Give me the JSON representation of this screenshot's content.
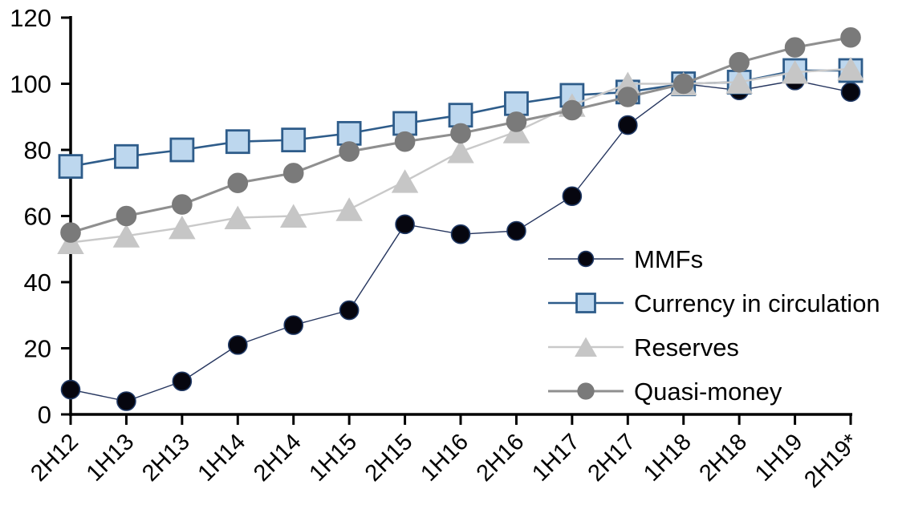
{
  "chart_data": {
    "type": "line",
    "title": "",
    "categories": [
      "2H12",
      "1H13",
      "2H13",
      "1H14",
      "2H14",
      "1H15",
      "2H15",
      "1H16",
      "2H16",
      "1H17",
      "2H17",
      "1H18",
      "2H18",
      "1H19",
      "2H19*"
    ],
    "series": [
      {
        "name": "MMFs",
        "marker": "circle",
        "marker_fill": "#06060f",
        "marker_edge": "#1f3864",
        "line_color": "#26365f",
        "line_width": 1.4,
        "marker_size": 23,
        "values": [
          7.5,
          4,
          10,
          21,
          27,
          31.5,
          57.5,
          54.5,
          55.5,
          66,
          87.5,
          100,
          98,
          101,
          97.5
        ]
      },
      {
        "name": "Currency in circulation",
        "marker": "square",
        "marker_fill": "#bdd7ee",
        "marker_edge": "#2e5c8a",
        "line_color": "#2e5c8a",
        "line_width": 2.6,
        "marker_size": 28,
        "values": [
          75,
          78,
          80,
          82.5,
          83,
          85,
          88,
          90.5,
          94,
          96.5,
          97.5,
          100,
          100.5,
          104,
          104
        ]
      },
      {
        "name": "Reserves",
        "marker": "triangle",
        "marker_fill": "#c6c6c6",
        "marker_edge": "#c6c6c6",
        "line_color": "#c9c9c9",
        "line_width": 2.4,
        "marker_size": 30,
        "values": [
          52,
          54,
          56.5,
          59.5,
          60,
          62,
          70.5,
          79.5,
          85.5,
          93.5,
          100,
          100,
          100.5,
          103.5,
          104.5
        ]
      },
      {
        "name": "Quasi-money",
        "marker": "circle",
        "marker_fill": "#7a7a7a",
        "marker_edge": "#7a7a7a",
        "line_color": "#8f8f8f",
        "line_width": 3.1,
        "marker_size": 24,
        "values": [
          55,
          60,
          63.5,
          70,
          73,
          79.5,
          82.5,
          85,
          88.5,
          92,
          96,
          100,
          106.5,
          111,
          114
        ]
      }
    ],
    "y_axis": {
      "min": 0,
      "max": 120,
      "step": 20,
      "tick_labels": [
        "0",
        "20",
        "40",
        "60",
        "80",
        "100",
        "120"
      ]
    },
    "x_axis": {
      "label_rotation_deg": -45
    },
    "legend": {
      "position": "inside-right",
      "items": [
        "MMFs",
        "Currency in circulation",
        "Reserves",
        "Quasi-money"
      ]
    },
    "grid": false,
    "axis_color": "#000000",
    "background_color": "#ffffff"
  }
}
